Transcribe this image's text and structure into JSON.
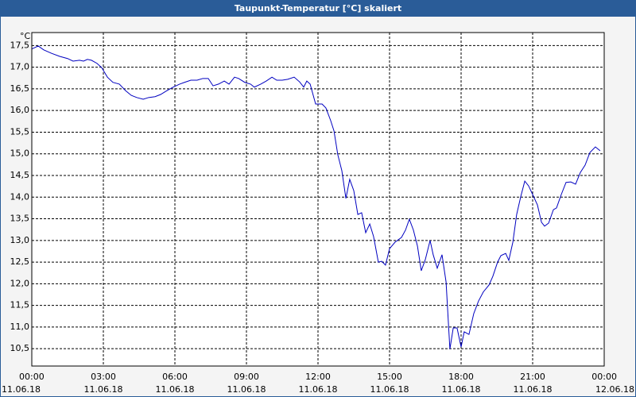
{
  "chart_data": {
    "type": "line",
    "title": "Taupunkt-Temperatur [°C] skaliert",
    "unit": "°C",
    "xlim": [
      0,
      24
    ],
    "ylim": [
      10.1,
      17.8
    ],
    "grid": true,
    "xticks": [
      {
        "value": 0,
        "label": "00:00",
        "date": "11.06.18"
      },
      {
        "value": 3,
        "label": "03:00",
        "date": "11.06.18"
      },
      {
        "value": 6,
        "label": "06:00",
        "date": "11.06.18"
      },
      {
        "value": 9,
        "label": "09:00",
        "date": "11.06.18"
      },
      {
        "value": 12,
        "label": "12:00",
        "date": "11.06.18"
      },
      {
        "value": 15,
        "label": "15:00",
        "date": "11.06.18"
      },
      {
        "value": 18,
        "label": "18:00",
        "date": "11.06.18"
      },
      {
        "value": 21,
        "label": "21:00",
        "date": "11.06.18"
      },
      {
        "value": 24,
        "label": "00:00",
        "date": "12.06.18"
      }
    ],
    "yticks": [
      {
        "value": 10.5,
        "label": "10,5"
      },
      {
        "value": 11,
        "label": "11,0"
      },
      {
        "value": 11.5,
        "label": "11,5"
      },
      {
        "value": 12,
        "label": "12,0"
      },
      {
        "value": 12.5,
        "label": "12,5"
      },
      {
        "value": 13,
        "label": "13,0"
      },
      {
        "value": 13.5,
        "label": "13,5"
      },
      {
        "value": 14,
        "label": "14,0"
      },
      {
        "value": 14.5,
        "label": "14,5"
      },
      {
        "value": 15,
        "label": "15,0"
      },
      {
        "value": 15.5,
        "label": "15,5"
      },
      {
        "value": 16,
        "label": "16,0"
      },
      {
        "value": 16.5,
        "label": "16,5"
      },
      {
        "value": 17,
        "label": "17,0"
      },
      {
        "value": 17.5,
        "label": "17,5"
      }
    ],
    "x": [
      0,
      0.27,
      0.5,
      0.83,
      1.17,
      1.5,
      1.73,
      2,
      2.17,
      2.33,
      2.5,
      2.73,
      2.93,
      3.17,
      3.4,
      3.67,
      3.93,
      4.17,
      4.4,
      4.67,
      4.9,
      5.17,
      5.4,
      5.67,
      5.93,
      6.2,
      6.4,
      6.67,
      6.93,
      7.17,
      7.4,
      7.6,
      7.83,
      8.07,
      8.27,
      8.5,
      8.67,
      8.93,
      9.17,
      9.33,
      9.6,
      9.83,
      10.07,
      10.27,
      10.5,
      10.73,
      11,
      11.23,
      11.4,
      11.53,
      11.67,
      11.9,
      12.17,
      12.33,
      12.53,
      12.67,
      12.83,
      13,
      13.17,
      13.33,
      13.5,
      13.67,
      13.83,
      14,
      14.17,
      14.33,
      14.53,
      14.67,
      14.83,
      15,
      15.23,
      15.5,
      15.67,
      15.83,
      16,
      16.17,
      16.33,
      16.5,
      16.7,
      16.83,
      17,
      17.2,
      17.37,
      17.53,
      17.67,
      17.83,
      18,
      18.13,
      18.33,
      18.53,
      18.73,
      18.93,
      19.17,
      19.33,
      19.53,
      19.67,
      19.87,
      20,
      20.17,
      20.33,
      20.5,
      20.67,
      20.83,
      21,
      21.2,
      21.37,
      21.5,
      21.67,
      21.87,
      22,
      22.2,
      22.4,
      22.6,
      22.8,
      23,
      23.2,
      23.4,
      23.63,
      23.83
    ],
    "series": [
      {
        "color": "#0000c0",
        "values": [
          17.42,
          17.49,
          17.4,
          17.32,
          17.25,
          17.2,
          17.14,
          17.16,
          17.14,
          17.18,
          17.16,
          17.09,
          16.99,
          16.77,
          16.65,
          16.61,
          16.46,
          16.35,
          16.3,
          16.26,
          16.3,
          16.32,
          16.37,
          16.46,
          16.54,
          16.61,
          16.65,
          16.7,
          16.7,
          16.74,
          16.74,
          16.57,
          16.61,
          16.68,
          16.61,
          16.77,
          16.74,
          16.65,
          16.61,
          16.54,
          16.61,
          16.68,
          16.77,
          16.7,
          16.7,
          16.72,
          16.77,
          16.66,
          16.54,
          16.68,
          16.61,
          16.15,
          16.15,
          16.06,
          15.77,
          15.53,
          14.98,
          14.61,
          13.97,
          14.41,
          14.15,
          13.6,
          13.64,
          13.18,
          13.38,
          13.09,
          12.5,
          12.52,
          12.43,
          12.81,
          12.96,
          13.07,
          13.24,
          13.49,
          13.24,
          12.87,
          12.3,
          12.56,
          13.0,
          12.67,
          12.36,
          12.67,
          12.04,
          10.49,
          10.98,
          10.98,
          10.54,
          10.89,
          10.83,
          11.31,
          11.6,
          11.81,
          11.97,
          12.17,
          12.5,
          12.65,
          12.7,
          12.54,
          12.96,
          13.6,
          14.01,
          14.37,
          14.26,
          14.06,
          13.82,
          13.42,
          13.33,
          13.4,
          13.71,
          13.75,
          14.06,
          14.34,
          14.35,
          14.3,
          14.57,
          14.74,
          15.03,
          15.16,
          15.07
        ]
      }
    ]
  }
}
